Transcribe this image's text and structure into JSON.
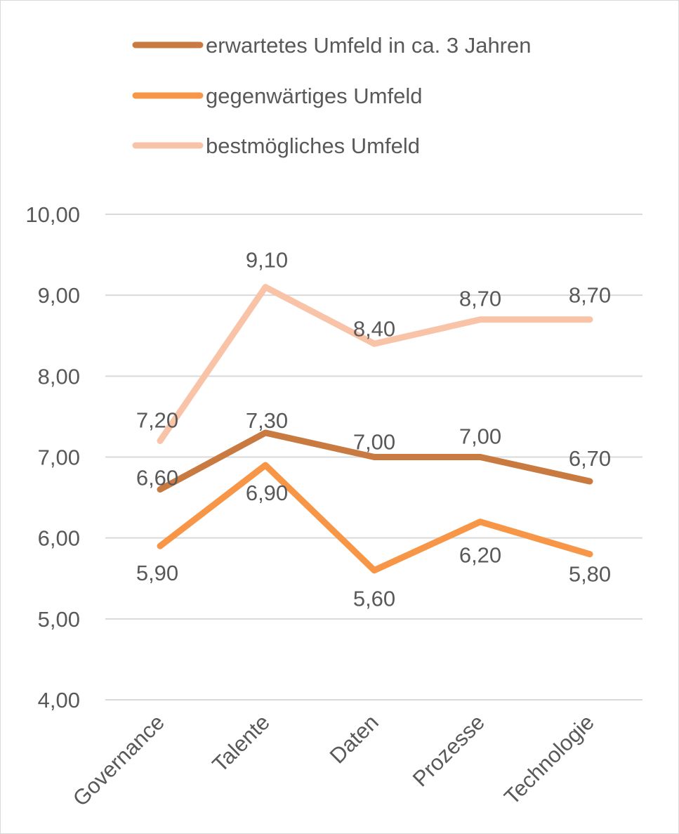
{
  "chart_data": {
    "type": "line",
    "categories": [
      "Governance",
      "Talente",
      "Daten",
      "Prozesse",
      "Technologie"
    ],
    "series": [
      {
        "name": "erwartetes Umfeld in ca. 3 Jahren",
        "values": [
          6.6,
          7.3,
          7.0,
          7.0,
          6.7
        ],
        "labels": [
          "6,60",
          "7,30",
          "7,00",
          "7,00",
          "6,70"
        ],
        "color": "#c97a40"
      },
      {
        "name": "gegenwärtiges Umfeld",
        "values": [
          5.9,
          6.9,
          5.6,
          6.2,
          5.8
        ],
        "labels": [
          "5,90",
          "6,90",
          "5,60",
          "6,20",
          "5,80"
        ],
        "color": "#f79646"
      },
      {
        "name": "bestmögliches Umfeld",
        "values": [
          7.2,
          9.1,
          8.4,
          8.7,
          8.7
        ],
        "labels": [
          "7,20",
          "9,10",
          "8,40",
          "8,70",
          "8,70"
        ],
        "color": "#f9c3a8"
      }
    ],
    "ylim": [
      4,
      10
    ],
    "yticks": [
      4,
      5,
      6,
      7,
      8,
      9,
      10
    ],
    "ytick_labels": [
      "4,00",
      "5,00",
      "6,00",
      "7,00",
      "8,00",
      "9,00",
      "10,00"
    ],
    "grid": true,
    "legend_position": "top",
    "title": "",
    "xlabel": "",
    "ylabel": ""
  }
}
